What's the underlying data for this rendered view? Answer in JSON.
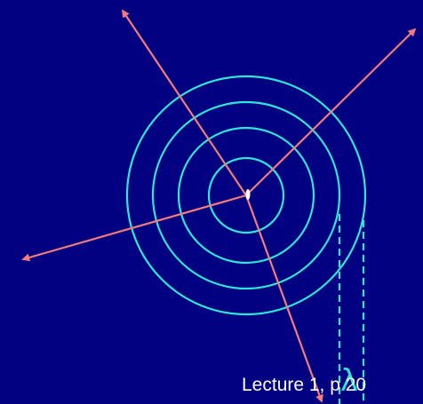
{
  "colors": {
    "background": "#000080",
    "wavefront": "#2ee6d6",
    "ray": "#f47c7c",
    "source": "#ffffff",
    "text": "#ffffff"
  },
  "wavelength_symbol": "λ",
  "footer": {
    "text": "Lecture 1, p 20"
  }
}
